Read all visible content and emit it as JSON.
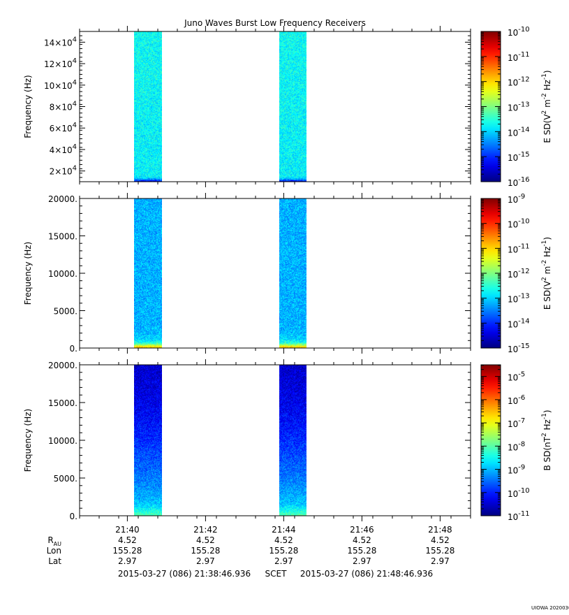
{
  "chart_data": {
    "type": "heatmap",
    "title": "Juno Waves Burst Low Frequency Receivers",
    "x_axis": {
      "tick_labels": [
        "21:40",
        "21:42",
        "21:44",
        "21:46",
        "21:48"
      ],
      "tick_values_min": [
        1.2214,
        3.2214,
        5.2214,
        7.2214,
        9.2214
      ],
      "range_min": [
        0,
        10
      ],
      "start_label": "2015-03-27 (086) 21:38:46.936",
      "middle_label": "SCET",
      "end_label": "2015-03-27 (086) 21:48:46.936"
    },
    "bursts_min": [
      [
        1.4,
        2.1
      ],
      [
        5.1,
        5.8
      ]
    ],
    "ephemeris": {
      "rows": [
        {
          "label": "R",
          "subscript": "AU",
          "values": [
            "4.52",
            "4.52",
            "4.52",
            "4.52",
            "4.52"
          ]
        },
        {
          "label": "Lon",
          "subscript": "",
          "values": [
            "155.28",
            "155.28",
            "155.28",
            "155.28",
            "155.28"
          ]
        },
        {
          "label": "Lat",
          "subscript": "",
          "values": [
            "2.97",
            "2.97",
            "2.97",
            "2.97",
            "2.97"
          ]
        }
      ]
    },
    "panels": [
      {
        "ylabel": "Frequency (Hz)",
        "yrange": [
          10000,
          150000
        ],
        "yticks": [
          {
            "v": 20000,
            "m": "2",
            "e": "4"
          },
          {
            "v": 40000,
            "m": "4",
            "e": "4"
          },
          {
            "v": 60000,
            "m": "6",
            "e": "4"
          },
          {
            "v": 80000,
            "m": "8",
            "e": "4"
          },
          {
            "v": 100000,
            "m": "10",
            "e": "4"
          },
          {
            "v": 120000,
            "m": "12",
            "e": "4"
          },
          {
            "v": 140000,
            "m": "14",
            "e": "4"
          }
        ],
        "colorbar": {
          "label_pre": "E SD(V",
          "label_post": ")",
          "exp_min": -16,
          "exp_max": -10,
          "ticks": [
            {
              "base": "10",
              "exp": "-10"
            },
            {
              "base": "10",
              "exp": "-11"
            },
            {
              "base": "10",
              "exp": "-12"
            },
            {
              "base": "10",
              "exp": "-13"
            },
            {
              "base": "10",
              "exp": "-14"
            },
            {
              "base": "10",
              "exp": "-15"
            },
            {
              "base": "10",
              "exp": "-16"
            }
          ]
        },
        "spectrum_log10": [
          [
            10000,
            -15.7
          ],
          [
            11500,
            -14.6
          ],
          [
            14000,
            -13.8
          ],
          [
            150000,
            -13.7
          ]
        ]
      },
      {
        "ylabel": "Frequency (Hz)",
        "yrange": [
          0,
          20000
        ],
        "yticks": [
          {
            "v": 0,
            "label": "0."
          },
          {
            "v": 5000,
            "label": "5000."
          },
          {
            "v": 10000,
            "label": "10000."
          },
          {
            "v": 15000,
            "label": "15000."
          },
          {
            "v": 20000,
            "label": "20000."
          }
        ],
        "colorbar": {
          "label_pre": "E SD(V",
          "label_post": ")",
          "exp_min": -15,
          "exp_max": -9,
          "ticks": [
            {
              "base": "10",
              "exp": "-9"
            },
            {
              "base": "10",
              "exp": "-10"
            },
            {
              "base": "10",
              "exp": "-11"
            },
            {
              "base": "10",
              "exp": "-12"
            },
            {
              "base": "10",
              "exp": "-13"
            },
            {
              "base": "10",
              "exp": "-14"
            },
            {
              "base": "10",
              "exp": "-15"
            }
          ]
        },
        "spectrum_log10": [
          [
            0,
            -11.0
          ],
          [
            200,
            -11.1
          ],
          [
            400,
            -11.8
          ],
          [
            700,
            -12.6
          ],
          [
            1200,
            -13.0
          ],
          [
            2500,
            -13.2
          ],
          [
            20000,
            -13.2
          ]
        ]
      },
      {
        "ylabel": "Frequency (Hz)",
        "yrange": [
          0,
          20000
        ],
        "yticks": [
          {
            "v": 0,
            "label": "0."
          },
          {
            "v": 5000,
            "label": "5000."
          },
          {
            "v": 10000,
            "label": "10000."
          },
          {
            "v": 15000,
            "label": "15000."
          },
          {
            "v": 20000,
            "label": "20000."
          }
        ],
        "colorbar": {
          "label_pre": "B SD(nT",
          "label_post": ")",
          "exp_min": -11,
          "exp_max": -4.5,
          "ticks": [
            {
              "base": "10",
              "exp": "-5"
            },
            {
              "base": "10",
              "exp": "-6"
            },
            {
              "base": "10",
              "exp": "-7"
            },
            {
              "base": "10",
              "exp": "-8"
            },
            {
              "base": "10",
              "exp": "-9"
            },
            {
              "base": "10",
              "exp": "-10"
            },
            {
              "base": "10",
              "exp": "-11"
            }
          ]
        },
        "spectrum_log10": [
          [
            0,
            -8.0
          ],
          [
            600,
            -8.4
          ],
          [
            1500,
            -8.9
          ],
          [
            4000,
            -9.3
          ],
          [
            7000,
            -9.6
          ],
          [
            11000,
            -10.0
          ],
          [
            15000,
            -10.3
          ],
          [
            20000,
            -10.5
          ]
        ]
      }
    ]
  },
  "footer": {
    "stamp": "UIOWA 20200307"
  }
}
